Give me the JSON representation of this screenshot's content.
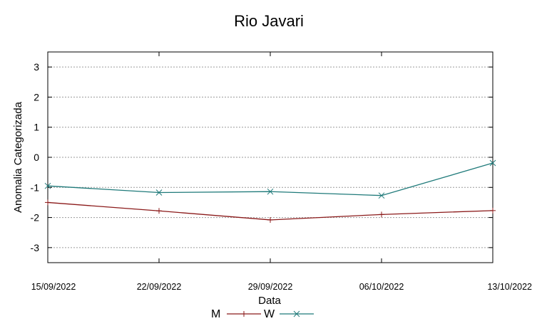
{
  "chart_data": {
    "type": "line",
    "title": "Rio Javari",
    "xlabel": "Data",
    "ylabel": "Anomalia Categorizada",
    "categories": [
      "15/09/2022",
      "22/09/2022",
      "29/09/2022",
      "06/10/2022",
      "13/10/2022"
    ],
    "ylim": [
      -3.5,
      3.5
    ],
    "yticks": [
      -3,
      -2,
      -1,
      0,
      1,
      2,
      3
    ],
    "grid": true,
    "legend_position": "bottom",
    "series": [
      {
        "name": "M",
        "values": [
          -1.5,
          -1.78,
          -2.08,
          -1.9,
          -1.77
        ],
        "color": "#8b1a1a",
        "marker": "plus"
      },
      {
        "name": "W",
        "values": [
          -0.95,
          -1.17,
          -1.14,
          -1.27,
          -0.19
        ],
        "color": "#1f7a7a",
        "marker": "cross"
      }
    ]
  }
}
